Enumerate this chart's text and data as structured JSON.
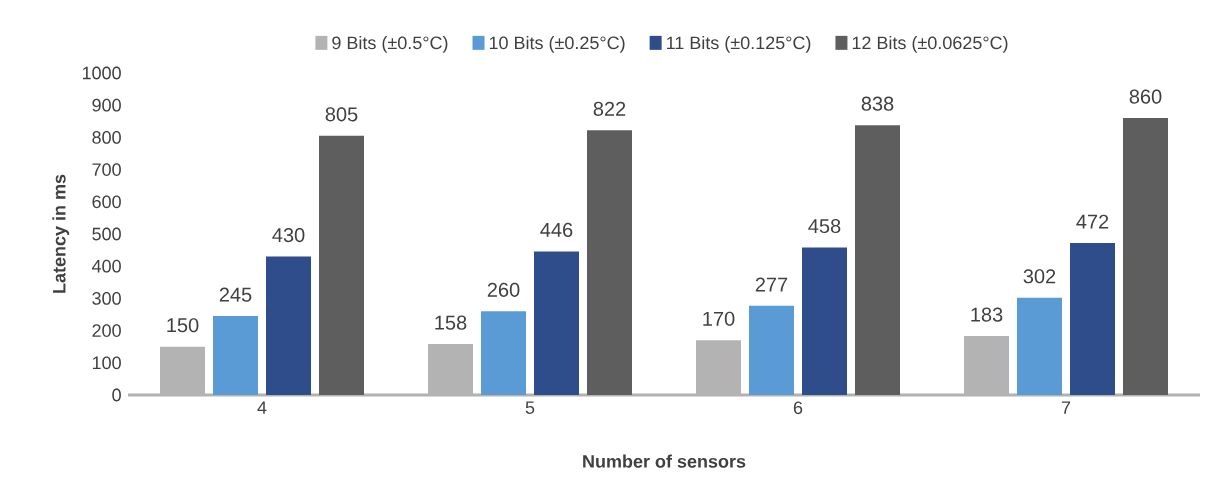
{
  "chart_data": {
    "type": "bar",
    "xlabel": "Number of sensors",
    "ylabel": "Latency in ms",
    "categories": [
      "4",
      "5",
      "6",
      "7"
    ],
    "series": [
      {
        "name": "9 Bits (±0.5°C)",
        "color": "#b3b3b3",
        "values": [
          150,
          158,
          170,
          183
        ]
      },
      {
        "name": "10 Bits (±0.25°C)",
        "color": "#5b9bd5",
        "values": [
          245,
          260,
          277,
          302
        ]
      },
      {
        "name": "11 Bits (±0.125°C)",
        "color": "#2e4d8a",
        "values": [
          430,
          446,
          458,
          472
        ]
      },
      {
        "name": "12 Bits (±0.0625°C)",
        "color": "#5e5e5e",
        "values": [
          805,
          822,
          838,
          860
        ]
      }
    ],
    "ylim": [
      0,
      1000
    ],
    "yticks": [
      0,
      100,
      200,
      300,
      400,
      500,
      600,
      700,
      800,
      900,
      1000
    ],
    "data_labels": true,
    "legend": "top",
    "grid": false
  }
}
